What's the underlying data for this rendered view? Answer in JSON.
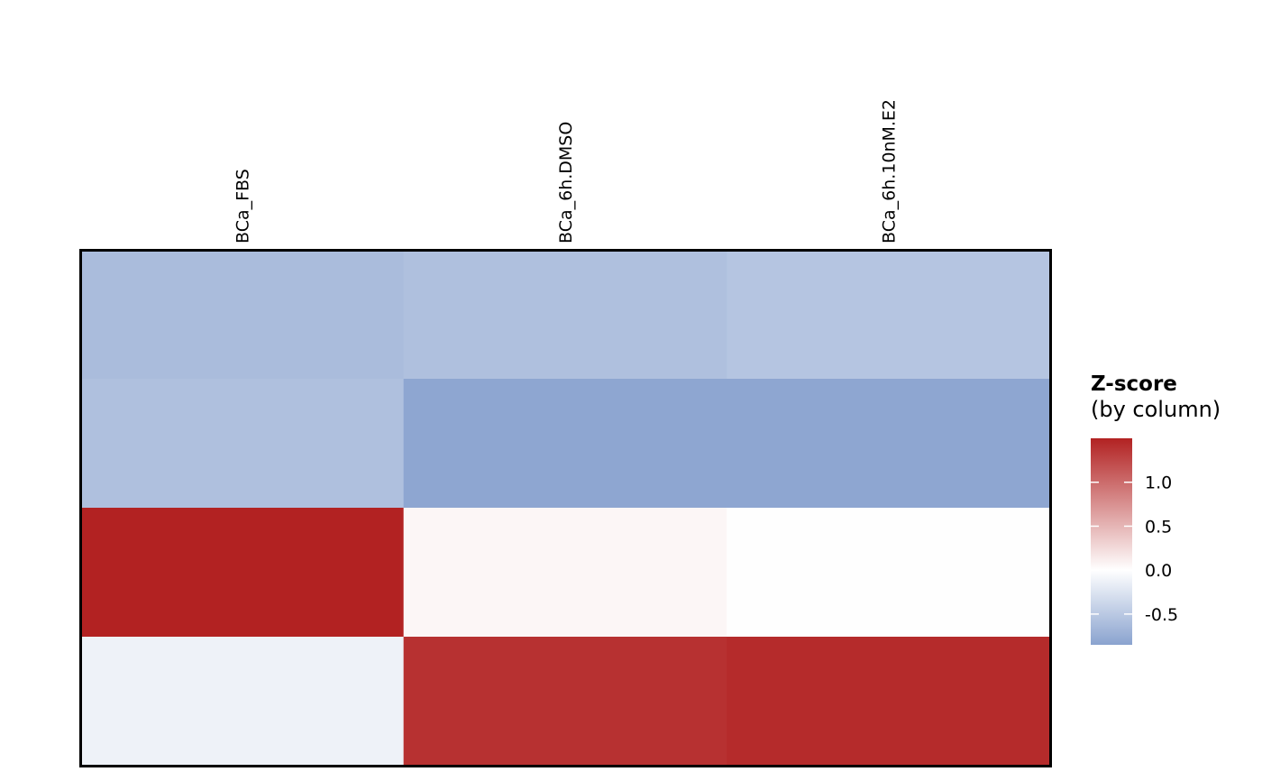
{
  "chart_data": {
    "type": "heatmap",
    "columns": [
      "BCa_FBS",
      "BCa_6h.DMSO",
      "BCa_6h.10nM.E2"
    ],
    "rows": 4,
    "values": [
      [
        -0.62,
        -0.58,
        -0.54
      ],
      [
        -0.58,
        -0.82,
        -0.82
      ],
      [
        1.5,
        0.06,
        0.01
      ],
      [
        -0.12,
        1.4,
        1.44
      ]
    ],
    "color_scale": {
      "min": -0.85,
      "mid": 0.0,
      "max": 1.5,
      "low_color": "#8aa3cf",
      "mid_color": "#ffffff",
      "high_color": "#b22222"
    },
    "legend": {
      "title": "Z-score",
      "subtitle": "(by column)",
      "ticks": [
        "1.0",
        "0.5",
        "0.0",
        "-0.5"
      ],
      "tick_values": [
        1.0,
        0.5,
        0.0,
        -0.5
      ],
      "placement": "right"
    },
    "border_color": "#000000"
  }
}
